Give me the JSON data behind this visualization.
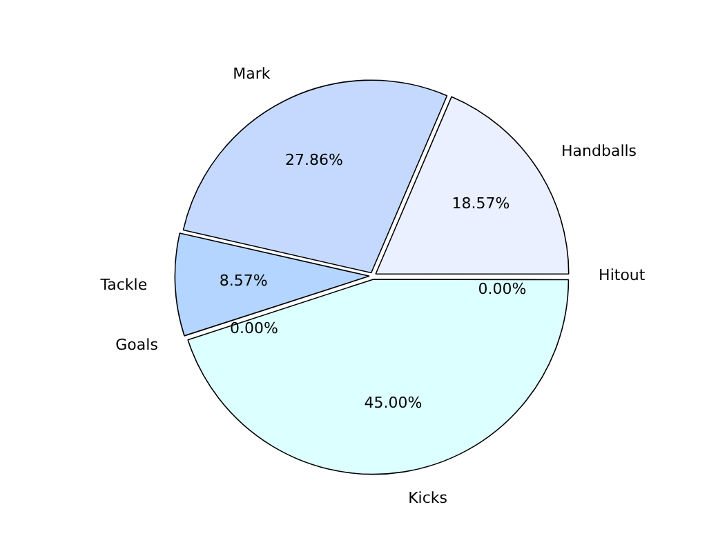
{
  "chart_data": {
    "type": "pie",
    "categories": [
      "Kicks",
      "Goals",
      "Tackle",
      "Mark",
      "Handballs",
      "Hitout"
    ],
    "values": [
      45.0,
      0.0,
      8.57,
      27.86,
      18.57,
      0.0
    ],
    "colors": [
      "#dcffff",
      "#c8e6ff",
      "#b3d5ff",
      "#c5d9ff",
      "#eaf0ff",
      "#f5f8ff"
    ],
    "value_labels": [
      "45.00%",
      "0.00%",
      "8.57%",
      "27.86%",
      "18.57%",
      "0.00%"
    ],
    "legend": false
  }
}
